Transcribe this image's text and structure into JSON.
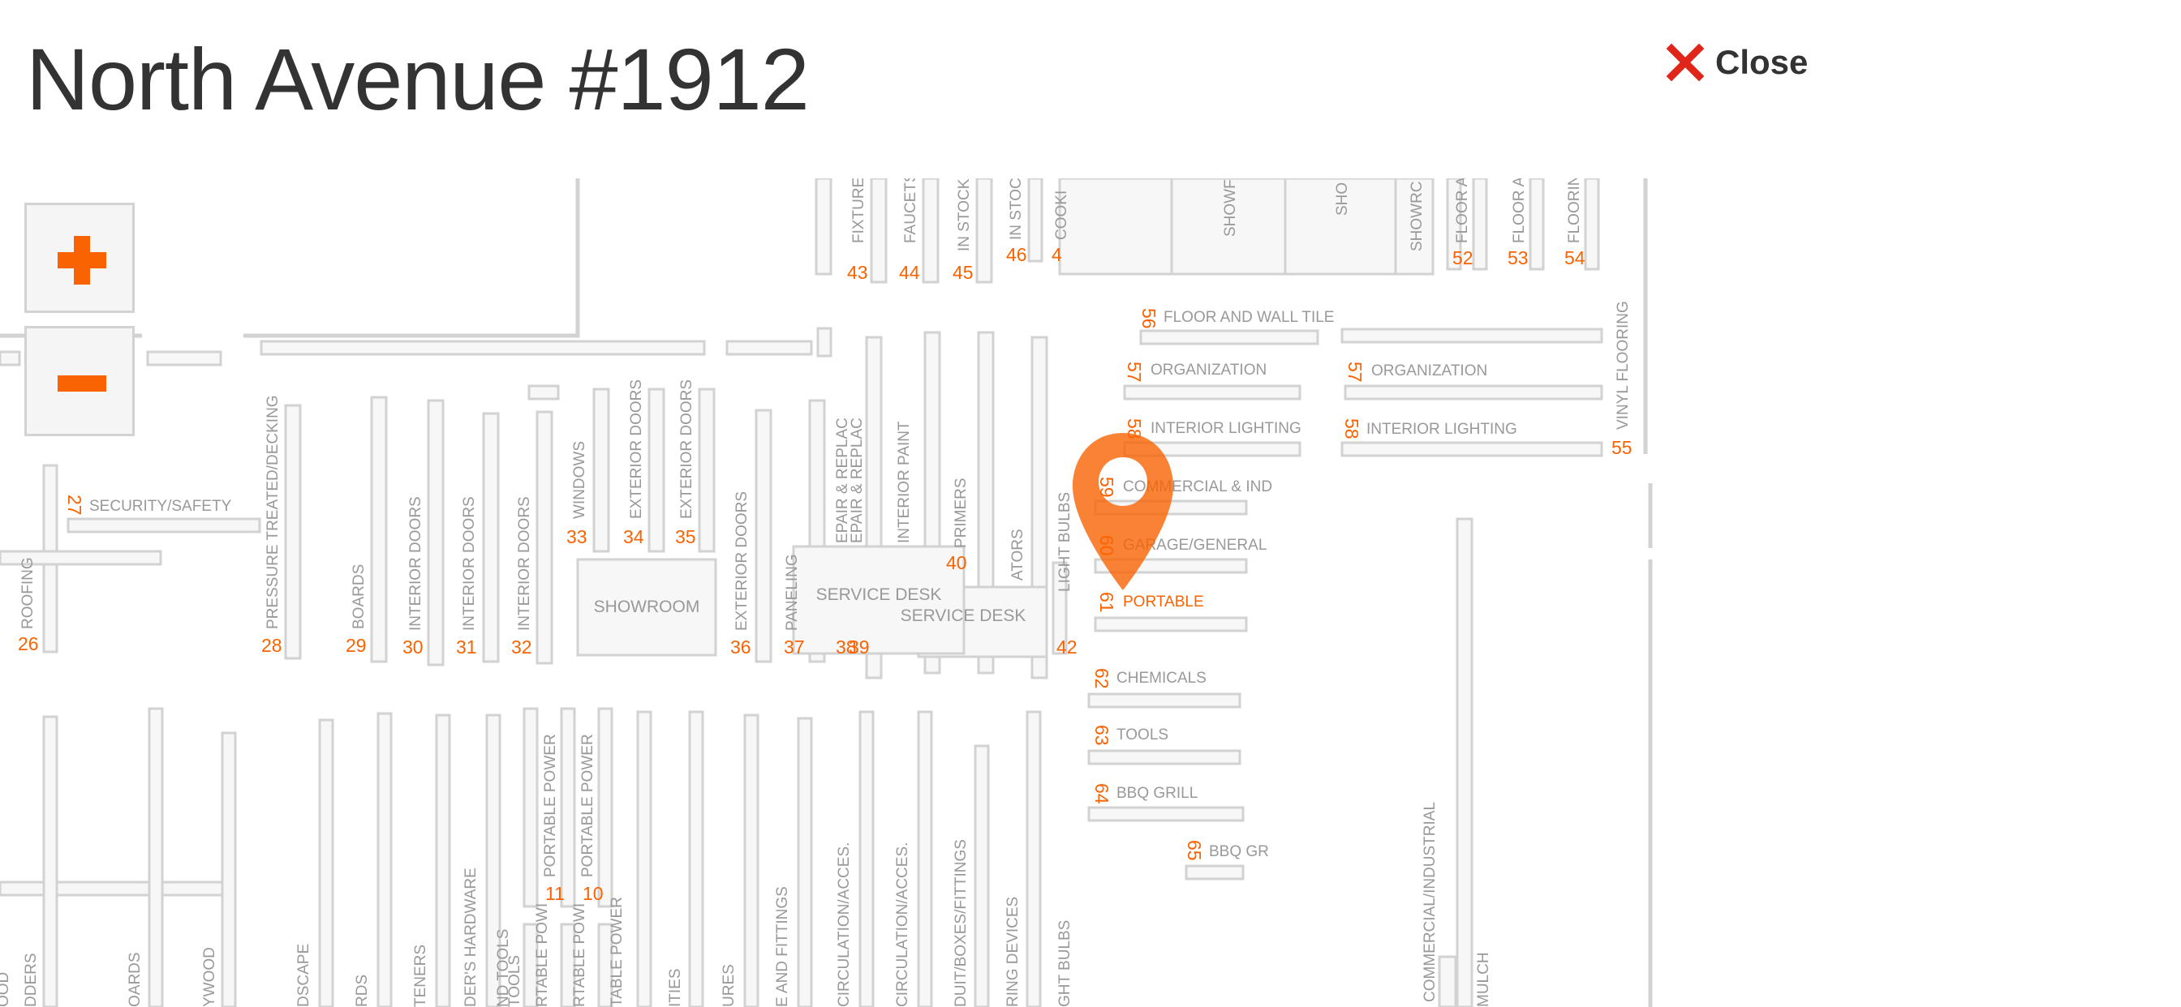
{
  "header": {
    "title": "North Avenue #1912",
    "close_label": "Close"
  },
  "colors": {
    "accent": "#f96302",
    "close_x": "#e0251b",
    "fixture_stroke": "#d2d2d2",
    "label_text": "#999999",
    "title_text": "#333333"
  },
  "map": {
    "zoom_in_icon": "plus-icon",
    "zoom_out_icon": "minus-icon",
    "pin_icon": "location-pin-icon",
    "highlighted_aisle": "61",
    "aisles_horizontal": [
      {
        "num": "27",
        "label": "SECURITY/SAFETY"
      },
      {
        "num": "56",
        "label": "FLOOR AND WALL TILE"
      },
      {
        "num": "57",
        "label": "ORGANIZATION"
      },
      {
        "num": "57",
        "label": "ORGANIZATION"
      },
      {
        "num": "58",
        "label": "INTERIOR LIGHTING"
      },
      {
        "num": "58",
        "label": "INTERIOR LIGHTING"
      },
      {
        "num": "59",
        "label": "COMMERCIAL & IND"
      },
      {
        "num": "60",
        "label": "GARAGE/GENERAL"
      },
      {
        "num": "61",
        "label": "PORTABLE"
      },
      {
        "num": "62",
        "label": "CHEMICALS"
      },
      {
        "num": "63",
        "label": "TOOLS"
      },
      {
        "num": "64",
        "label": "BBQ GRILL"
      },
      {
        "num": "65",
        "label": "BBQ GR"
      }
    ],
    "aisles_vertical_top": [
      {
        "num": "43",
        "label": "FIXTURES"
      },
      {
        "num": "44",
        "label": "FAUCETS"
      },
      {
        "num": "45",
        "label": "IN STOCK F"
      },
      {
        "num": "46",
        "label": "IN STOCI"
      },
      {
        "num": "4",
        "label": "COOKI"
      },
      {
        "num": "",
        "label": "SHOWF"
      },
      {
        "num": "",
        "label": "SHO"
      },
      {
        "num": "",
        "label": "SHOWRC"
      },
      {
        "num": "52",
        "label": "FLOOR A"
      },
      {
        "num": "53",
        "label": "FLOOR A"
      },
      {
        "num": "54",
        "label": "FLOORIN"
      },
      {
        "num": "55",
        "label": "VINYL FLOORING"
      }
    ],
    "aisles_vertical_mid": [
      {
        "num": "26",
        "label": "ROOFING"
      },
      {
        "num": "28",
        "label": "PRESSURE TREATED/DECKING"
      },
      {
        "num": "29",
        "label": "BOARDS"
      },
      {
        "num": "30",
        "label": "INTERIOR DOORS"
      },
      {
        "num": "31",
        "label": "INTERIOR DOORS"
      },
      {
        "num": "32",
        "label": "INTERIOR DOORS"
      },
      {
        "num": "33",
        "label": "WINDOWS"
      },
      {
        "num": "34",
        "label": "EXTERIOR DOORS"
      },
      {
        "num": "35",
        "label": "EXTERIOR DOORS"
      },
      {
        "num": "36",
        "label": "EXTERIOR DOORS"
      },
      {
        "num": "37",
        "label": "PANELING"
      },
      {
        "num": "38",
        "label": "EPAIR & REPLAC"
      },
      {
        "num": "39",
        "label": "EPAIR & REPLAC"
      },
      {
        "num": "40",
        "label": "INTERIOR PAINT"
      },
      {
        "num": "",
        "label": "PRIMERS"
      },
      {
        "num": "",
        "label": "ATORS"
      },
      {
        "num": "42",
        "label": "LIGHT BULBS"
      }
    ],
    "aisles_vertical_bottom": [
      {
        "num": "",
        "label": "DDERS"
      },
      {
        "num": "",
        "label": "OOD"
      },
      {
        "num": "",
        "label": "OARDS"
      },
      {
        "num": "",
        "label": "YWOOD"
      },
      {
        "num": "",
        "label": "DSCAPE"
      },
      {
        "num": "",
        "label": "RDS"
      },
      {
        "num": "",
        "label": "TENERS"
      },
      {
        "num": "",
        "label": "DER'S HARDWARE"
      },
      {
        "num": "",
        "label": "ND TOOLS"
      },
      {
        "num": "",
        "label": "TOOLS"
      },
      {
        "num": "11",
        "label": "PORTABLE POWER"
      },
      {
        "num": "10",
        "label": "PORTABLE POWER"
      },
      {
        "num": "",
        "label": "RTABLE POWI"
      },
      {
        "num": "",
        "label": "RTABLE POWI"
      },
      {
        "num": "",
        "label": "TABLE POWER"
      },
      {
        "num": "",
        "label": "ITIES"
      },
      {
        "num": "",
        "label": "URES"
      },
      {
        "num": "",
        "label": "E AND FITTINGS"
      },
      {
        "num": "",
        "label": "CIRCULATION/ACCES."
      },
      {
        "num": "",
        "label": "CIRCULATION/ACCES."
      },
      {
        "num": "",
        "label": "DUIT/BOXES/FITTINGS"
      },
      {
        "num": "",
        "label": "RING DEVICES"
      },
      {
        "num": "",
        "label": "GHT BULBS"
      },
      {
        "num": "",
        "label": "COMMERCIAL/INDUSTRIAL"
      },
      {
        "num": "",
        "label": "MULCH"
      }
    ],
    "areas": [
      {
        "label": "SHOWROOM"
      },
      {
        "label": "SERVICE DESK"
      },
      {
        "label": "SERVICE DESK"
      }
    ]
  }
}
